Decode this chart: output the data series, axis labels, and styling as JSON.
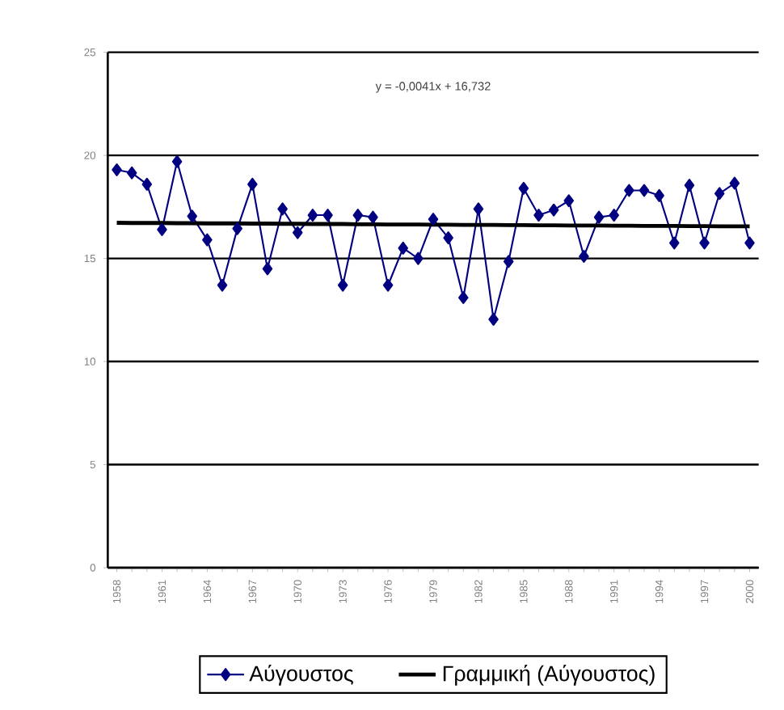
{
  "chart_data": {
    "type": "line",
    "categories": [
      "1958",
      null,
      null,
      "1961",
      null,
      null,
      "1964",
      null,
      null,
      "1967",
      null,
      null,
      "1970",
      null,
      null,
      "1973",
      null,
      null,
      "1976",
      null,
      null,
      "1979",
      null,
      null,
      "1982",
      null,
      null,
      "1985",
      null,
      null,
      "1988",
      null,
      null,
      "1991",
      null,
      null,
      "1994",
      null,
      null,
      "1997",
      null,
      null,
      "2000"
    ],
    "series": [
      {
        "name": "Αύγουστος",
        "color": "#000080",
        "marker": "diamond",
        "values": [
          19.3,
          19.15,
          18.6,
          16.4,
          19.7,
          17.05,
          15.9,
          13.7,
          16.45,
          18.6,
          14.5,
          17.4,
          16.25,
          17.1,
          17.1,
          13.7,
          17.1,
          17.0,
          13.7,
          15.5,
          15.0,
          16.9,
          16.0,
          13.1,
          17.4,
          12.05,
          14.85,
          18.4,
          17.1,
          17.35,
          17.8,
          15.1,
          17.0,
          17.1,
          18.3,
          18.3,
          18.05,
          15.75,
          18.55,
          15.75,
          18.15,
          18.65,
          15.75
        ]
      },
      {
        "name": "Γραμμική (Αύγουστος)",
        "type": "line",
        "color": "#000000",
        "marker": "none",
        "values": [
          16.73,
          16.72,
          16.72,
          16.72,
          16.71,
          16.71,
          16.7,
          16.7,
          16.7,
          16.69,
          16.69,
          16.68,
          16.68,
          16.67,
          16.67,
          16.67,
          16.66,
          16.66,
          16.65,
          16.65,
          16.65,
          16.64,
          16.64,
          16.63,
          16.63,
          16.63,
          16.62,
          16.62,
          16.61,
          16.61,
          16.6,
          16.6,
          16.6,
          16.59,
          16.59,
          16.58,
          16.58,
          16.58,
          16.57,
          16.57,
          16.56,
          16.56,
          16.56
        ]
      }
    ],
    "ylim": [
      0,
      25
    ],
    "yticks": [
      0,
      5,
      10,
      15,
      20,
      25
    ],
    "grid": "y",
    "legend": "bottom",
    "annotations": [
      "y = -0,0041x + 16,732"
    ]
  }
}
